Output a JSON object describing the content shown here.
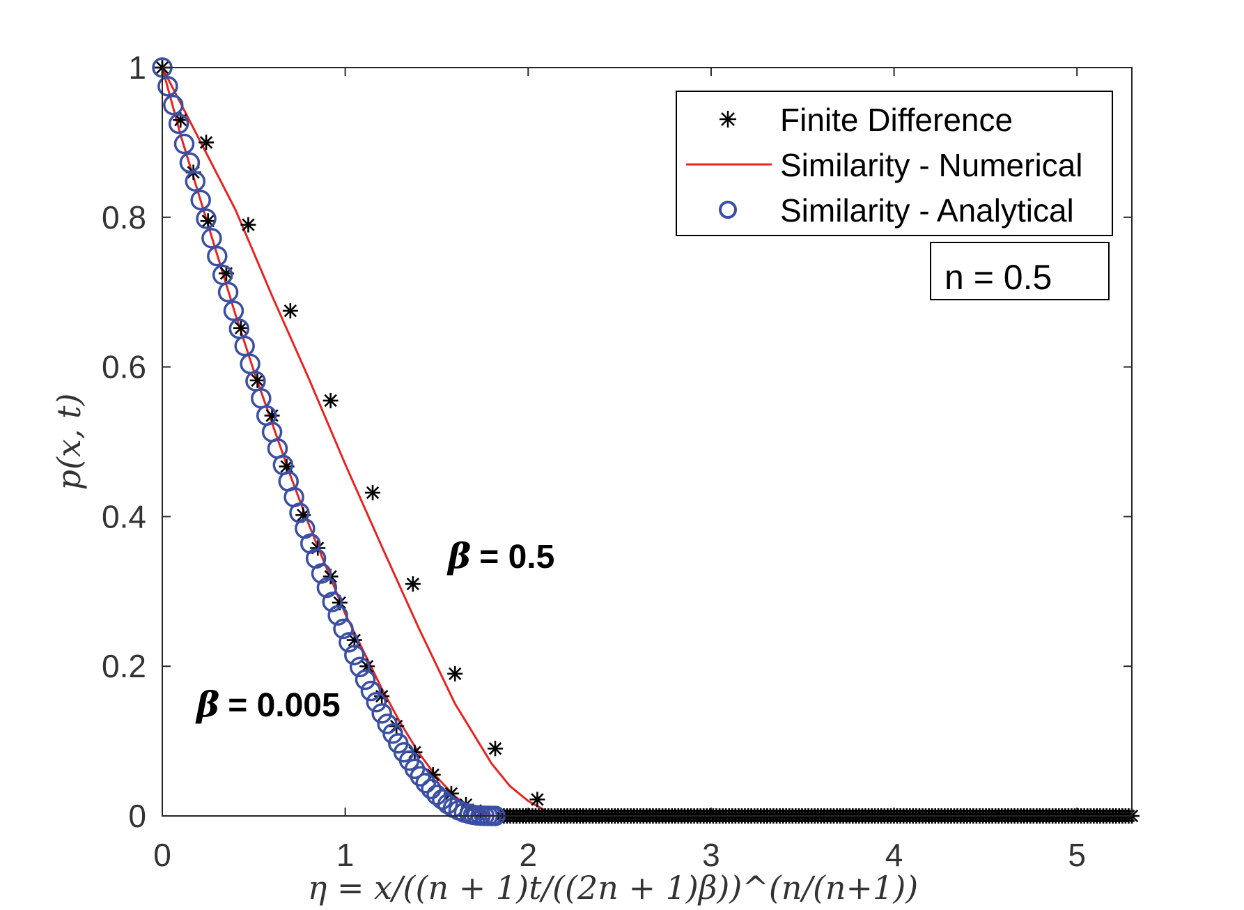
{
  "chart_data": {
    "type": "line",
    "xlabel": "η = x/((n + 1)t/((2n + 1)β))^(n/(n+1))",
    "ylabel": "p(x, t)",
    "xlim": [
      0,
      5.3
    ],
    "ylim": [
      0,
      1
    ],
    "xticks": [
      "0",
      "1",
      "2",
      "3",
      "4",
      "5"
    ],
    "yticks": [
      "0",
      "0.2",
      "0.4",
      "0.6",
      "0.8",
      "1"
    ],
    "legend_position": "top-right",
    "legend": [
      "Finite Difference",
      "Similarity - Numerical",
      "Similarity - Analytical"
    ],
    "colors": {
      "finite_difference": "#000000",
      "numerical": "#e8231f",
      "analytical": "#3a4fa3"
    },
    "annotations": {
      "n_box": "n = 0.5",
      "beta_high_symbol": "β",
      "beta_high_value": "= 0.5",
      "beta_low_symbol": "β",
      "beta_low_value": "= 0.005"
    },
    "series": [
      {
        "name": "Similarity - Numerical (β = 0.5)",
        "x": [
          0,
          0.2,
          0.4,
          0.6,
          0.8,
          1.0,
          1.2,
          1.4,
          1.6,
          1.8,
          1.9,
          2.0,
          2.08,
          2.14,
          2.19,
          2.22
        ],
        "y": [
          1.0,
          0.905,
          0.81,
          0.695,
          0.585,
          0.47,
          0.36,
          0.252,
          0.15,
          0.07,
          0.04,
          0.02,
          0.009,
          0.003,
          0.0005,
          0.0
        ]
      },
      {
        "name": "Similarity - Numerical (β = 0.005)",
        "x": [
          0,
          0.1,
          0.2,
          0.3,
          0.4,
          0.5,
          0.6,
          0.7,
          0.8,
          0.9,
          1.0,
          1.1,
          1.2,
          1.3,
          1.4,
          1.5,
          1.6,
          1.7,
          1.75,
          1.79,
          1.81
        ],
        "y": [
          1.0,
          0.91,
          0.83,
          0.75,
          0.67,
          0.595,
          0.525,
          0.455,
          0.39,
          0.33,
          0.27,
          0.22,
          0.17,
          0.125,
          0.085,
          0.052,
          0.026,
          0.009,
          0.004,
          0.001,
          0.0
        ]
      },
      {
        "name": "Finite Difference (β = 0.5)",
        "marker": "star",
        "x": [
          0,
          0.24,
          0.47,
          0.7,
          0.92,
          1.15,
          1.37,
          1.6,
          1.82,
          2.05
        ],
        "y": [
          1.0,
          0.9,
          0.79,
          0.675,
          0.555,
          0.432,
          0.31,
          0.19,
          0.09,
          0.022
        ]
      },
      {
        "name": "Finite Difference (β = 0.005)",
        "marker": "star",
        "x": [
          0,
          0.1,
          0.17,
          0.25,
          0.35,
          0.43,
          0.52,
          0.6,
          0.68,
          0.77,
          0.85,
          0.92,
          0.97,
          1.05,
          1.12,
          1.2,
          1.28,
          1.38,
          1.48,
          1.58,
          1.66,
          1.74
        ],
        "y": [
          1.0,
          0.93,
          0.86,
          0.795,
          0.725,
          0.652,
          0.582,
          0.535,
          0.467,
          0.402,
          0.358,
          0.32,
          0.285,
          0.235,
          0.2,
          0.16,
          0.12,
          0.085,
          0.055,
          0.03,
          0.015,
          0.005
        ]
      },
      {
        "name": "Finite Difference (tail, p = 0)",
        "marker": "star",
        "x_start": 1.85,
        "x_end": 5.3,
        "count": 200,
        "y_constant": 0
      },
      {
        "name": "Similarity - Analytical (β = 0.005)",
        "marker": "circle",
        "x": [
          0,
          0.03,
          0.06,
          0.09,
          0.12,
          0.15,
          0.18,
          0.21,
          0.24,
          0.27,
          0.3,
          0.33,
          0.36,
          0.39,
          0.42,
          0.45,
          0.48,
          0.51,
          0.54,
          0.57,
          0.6,
          0.63,
          0.66,
          0.69,
          0.72,
          0.75,
          0.78,
          0.81,
          0.84,
          0.87,
          0.9,
          0.93,
          0.96,
          0.99,
          1.02,
          1.05,
          1.08,
          1.11,
          1.14,
          1.17,
          1.2,
          1.23,
          1.26,
          1.29,
          1.32,
          1.35,
          1.38,
          1.41,
          1.44,
          1.47,
          1.5,
          1.53,
          1.56,
          1.59,
          1.62,
          1.65,
          1.68,
          1.7,
          1.72,
          1.74,
          1.76,
          1.78,
          1.8,
          1.82
        ],
        "y": [
          1.0,
          0.975,
          0.95,
          0.925,
          0.898,
          0.873,
          0.848,
          0.823,
          0.798,
          0.772,
          0.748,
          0.723,
          0.7,
          0.675,
          0.651,
          0.628,
          0.604,
          0.581,
          0.558,
          0.535,
          0.513,
          0.491,
          0.469,
          0.447,
          0.426,
          0.405,
          0.384,
          0.364,
          0.344,
          0.324,
          0.305,
          0.286,
          0.268,
          0.25,
          0.232,
          0.215,
          0.199,
          0.182,
          0.167,
          0.152,
          0.137,
          0.123,
          0.11,
          0.097,
          0.085,
          0.074,
          0.063,
          0.053,
          0.044,
          0.036,
          0.028,
          0.022,
          0.016,
          0.011,
          0.0075,
          0.0045,
          0.0025,
          0.0015,
          0.0008,
          0.0004,
          0.0002,
          0.0001,
          0.0,
          0.0
        ]
      }
    ]
  }
}
